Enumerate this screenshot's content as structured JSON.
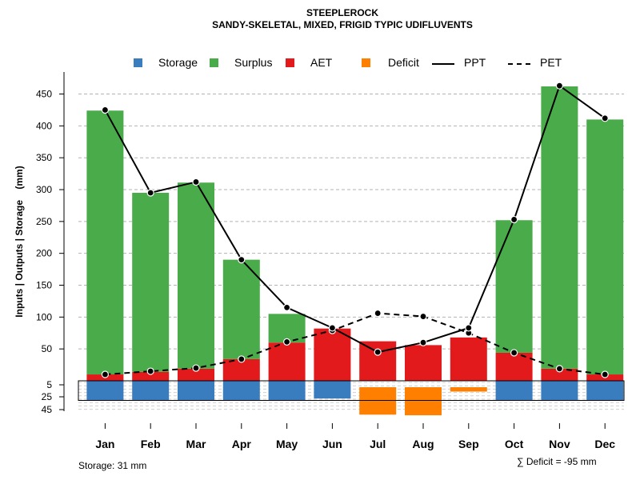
{
  "chart_data": {
    "type": "bar",
    "title": "STEEPLEROCK",
    "subtitle": "SANDY-SKELETAL, MIXED, FRIGID TYPIC UDIFLUVENTS",
    "ylabel": "Inputs | Outputs | Storage    (mm)",
    "ylim": [
      0,
      480
    ],
    "yticks": [
      50,
      100,
      150,
      200,
      250,
      300,
      350,
      400,
      450
    ],
    "storage_ticks": [
      5,
      25,
      45
    ],
    "storage_capacity": 31,
    "categories": [
      "Jan",
      "Feb",
      "Mar",
      "Apr",
      "May",
      "Jun",
      "Jul",
      "Aug",
      "Sep",
      "Oct",
      "Nov",
      "Dec"
    ],
    "series": [
      {
        "name": "Storage",
        "color": "#3a7dbf",
        "values": [
          31,
          31,
          31,
          31,
          31,
          28,
          0,
          0,
          0,
          31,
          31,
          31
        ]
      },
      {
        "name": "Surplus",
        "color": "#4aab4a",
        "values": [
          414,
          281,
          292,
          156,
          45,
          0,
          0,
          0,
          0,
          208,
          443,
          400
        ]
      },
      {
        "name": "AET",
        "color": "#e31a1c",
        "values": [
          10,
          14,
          19,
          34,
          60,
          82,
          62,
          56,
          68,
          44,
          19,
          10
        ]
      },
      {
        "name": "Deficit",
        "color": "#ff7f00",
        "values": [
          0,
          0,
          0,
          0,
          0,
          0,
          44,
          45,
          7,
          0,
          0,
          0
        ]
      },
      {
        "name": "PPT",
        "color": "#000000",
        "style": "solid",
        "values": [
          425,
          295,
          312,
          190,
          115,
          83,
          45,
          60,
          83,
          253,
          463,
          412
        ]
      },
      {
        "name": "PET",
        "color": "#000000",
        "style": "dashed",
        "values": [
          10,
          15,
          20,
          34,
          61,
          79,
          106,
          101,
          75,
          44,
          19,
          10
        ]
      }
    ],
    "legend": [
      "Storage",
      "Surplus",
      "AET",
      "Deficit",
      "PPT",
      "PET"
    ],
    "storage_note": "Storage: 31 mm",
    "deficit_note": "∑ Deficit = -95 mm"
  }
}
